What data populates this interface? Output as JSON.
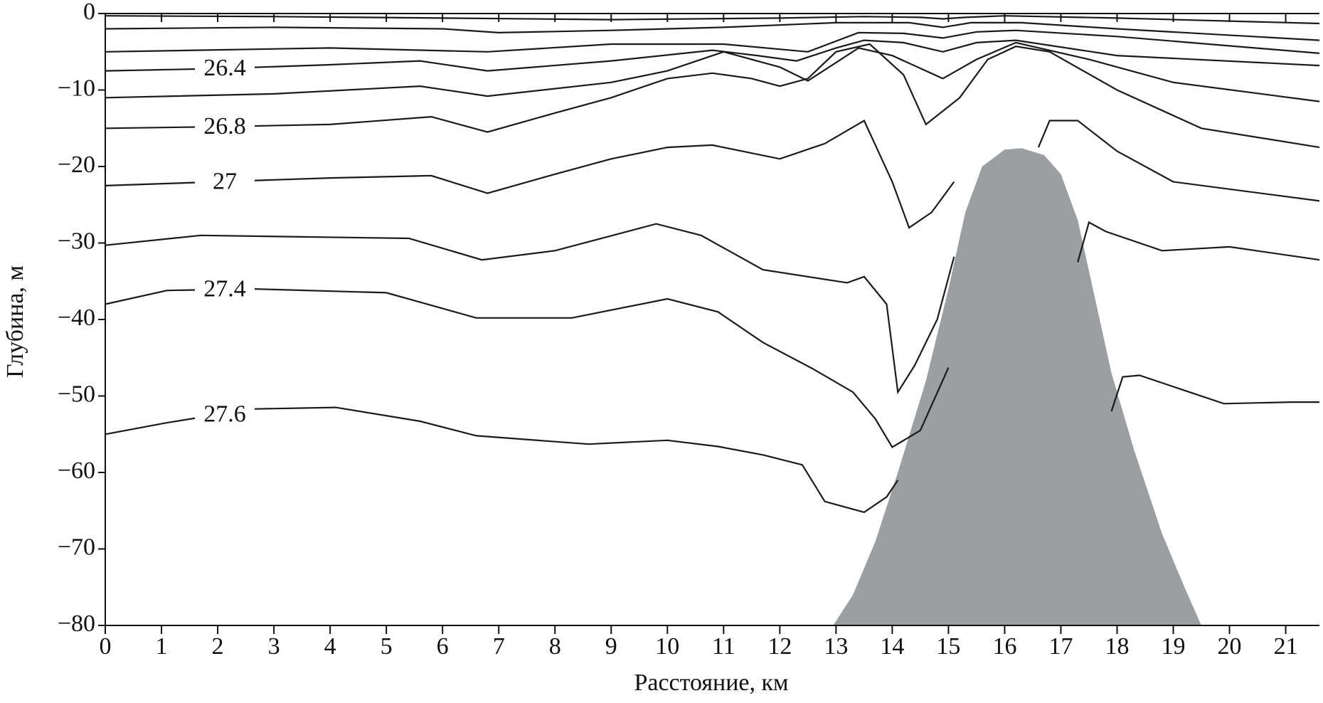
{
  "chart_data": {
    "type": "contour",
    "xlabel": "Расстояние, км",
    "ylabel": "Глубина, м",
    "xlim": [
      0,
      21.6
    ],
    "ylim": [
      -80,
      0
    ],
    "xticks": [
      0,
      1,
      2,
      3,
      4,
      5,
      6,
      7,
      8,
      9,
      10,
      11,
      12,
      13,
      14,
      15,
      16,
      17,
      18,
      19,
      20,
      21
    ],
    "yticks": [
      0,
      {
        "value": -10,
        "label": "−10"
      },
      {
        "value": -20,
        "label": "−20"
      },
      {
        "value": -30,
        "label": "−30"
      },
      {
        "value": -40,
        "label": "−40"
      },
      {
        "value": -50,
        "label": "−50"
      },
      {
        "value": -60,
        "label": "−60"
      },
      {
        "value": -70,
        "label": "−70"
      },
      {
        "value": -80,
        "label": "−80"
      }
    ],
    "line_color": "#1a1a1a",
    "terrain": {
      "color": "#9d9ea1",
      "x": [
        12.95,
        13.3,
        13.7,
        14.1,
        14.6,
        15.0,
        15.3,
        15.6,
        16.0,
        16.3,
        16.7,
        17.0,
        17.3,
        17.6,
        17.9,
        18.3,
        18.8,
        19.2,
        19.5
      ],
      "values": [
        -80,
        -76,
        -69,
        -60,
        -48,
        -36,
        -26,
        -20,
        -17.8,
        -17.6,
        -18.5,
        -21,
        -27,
        -37,
        -47,
        -57,
        -68,
        -75,
        -80
      ]
    },
    "series": [
      {
        "x": [
          0,
          3,
          6,
          9,
          12,
          13.5,
          14.5,
          14.9,
          15.3,
          16,
          18,
          21.6
        ],
        "values": [
          -0.3,
          -0.4,
          -0.6,
          -0.8,
          -0.6,
          -0.4,
          -0.5,
          -0.7,
          -0.5,
          -0.3,
          -0.6,
          -1.3
        ]
      },
      {
        "x": [
          0,
          3,
          6,
          7,
          9,
          11,
          13,
          14.3,
          14.9,
          15.4,
          16.3,
          18,
          21.6
        ],
        "values": [
          -2,
          -1.8,
          -2,
          -2.5,
          -2.2,
          -1.8,
          -1.2,
          -1.2,
          -1.8,
          -1.2,
          -1.2,
          -2,
          -3.5
        ]
      },
      {
        "x": [
          0,
          4,
          6.8,
          9,
          11,
          12.5,
          13.4,
          14.2,
          14.9,
          15.5,
          16.2,
          18,
          21.6
        ],
        "values": [
          -5,
          -4.5,
          -5,
          -4,
          -4,
          -5,
          -2.5,
          -2.6,
          -3.2,
          -2.4,
          -2.2,
          -3,
          -5.2
        ]
      },
      {
        "x": [
          0,
          2,
          4,
          5.6,
          6.8,
          9,
          10.8,
          11.6,
          12.3,
          13,
          13.5,
          14.2,
          14.9,
          15.5,
          16.2,
          18,
          21.6
        ],
        "values": [
          -7.5,
          -7.2,
          -6.7,
          -6.2,
          -7.5,
          -6.2,
          -4.8,
          -5.5,
          -6.2,
          -4.5,
          -3.5,
          -3.8,
          -5,
          -3.8,
          -3.5,
          -5.5,
          -6.8
        ],
        "label": 26.4
      },
      {
        "x": [
          0,
          3,
          5.6,
          6.8,
          9,
          10,
          11,
          12,
          12.5,
          13.4,
          14,
          14.9,
          15.5,
          16.2,
          17.5,
          19,
          21.6
        ],
        "values": [
          -11,
          -10.5,
          -9.5,
          -10.8,
          -9,
          -7.5,
          -5,
          -7,
          -8.8,
          -4.5,
          -5.5,
          -8.5,
          -6,
          -3.8,
          -6,
          -9,
          -11.5
        ]
      },
      {
        "x": [
          0,
          2,
          4,
          5.8,
          6.8,
          8,
          9,
          10,
          10.8,
          11.5,
          12,
          12.5,
          13,
          13.6,
          14.2,
          14.6,
          15.2,
          15.7,
          16.2,
          16.8,
          18,
          19.5,
          21.6
        ],
        "values": [
          -15,
          -14.8,
          -14.5,
          -13.5,
          -15.5,
          -13,
          -11,
          -8.5,
          -7.8,
          -8.5,
          -9.5,
          -8.5,
          -5,
          -4,
          -8,
          -14.5,
          -11,
          -6,
          -4.3,
          -5,
          -10,
          -15,
          -17.5
        ],
        "label": 26.8
      },
      {
        "x": [
          0,
          2,
          4,
          5.8,
          6.8,
          8,
          9,
          10,
          10.8,
          12,
          12.8,
          13.5,
          14,
          14.3,
          14.7,
          15.1,
          null,
          16.6,
          16.8,
          17.3,
          18,
          19,
          21.6
        ],
        "values": [
          -22.5,
          -22,
          -21.5,
          -21.2,
          -23.5,
          -21,
          -19,
          -17.5,
          -17.2,
          -19,
          -17,
          -14,
          -22,
          -28,
          -26,
          -22,
          null,
          -17.5,
          -14,
          -14,
          -18,
          -22,
          -24.5
        ],
        "label": 27
      },
      {
        "x": [
          0,
          1.7,
          5.4,
          6.7,
          8,
          9.8,
          10.6,
          11.7,
          13.2,
          13.5,
          13.9,
          14.1,
          14.4,
          14.8,
          15.1,
          null,
          17.3,
          17.5,
          17.8,
          18.8,
          20,
          21.6
        ],
        "values": [
          -30.3,
          -29,
          -29.4,
          -32.2,
          -31,
          -27.5,
          -29,
          -33.5,
          -35.2,
          -34.4,
          -38,
          -49.5,
          -46,
          -40,
          -31.8,
          null,
          -32.5,
          -27.3,
          -28.5,
          -31,
          -30.5,
          -32.2
        ]
      },
      {
        "x": [
          0,
          1.1,
          2.6,
          5,
          6.6,
          8.3,
          10,
          10.9,
          11.7,
          12.6,
          13.3,
          13.7,
          14,
          14.5,
          15.0,
          null,
          17.9,
          18.1,
          18.4,
          19.9,
          21.1,
          21.6
        ],
        "values": [
          -38,
          -36.2,
          -36,
          -36.5,
          -39.8,
          -39.8,
          -37.3,
          -39,
          -43,
          -46.5,
          -49.5,
          -53,
          -56.7,
          -54.5,
          -46.3,
          null,
          -52,
          -47.5,
          -47.3,
          -51,
          -50.8,
          -50.8
        ],
        "label": 27.4
      },
      {
        "x": [
          0,
          1.1,
          2.6,
          4.1,
          5.6,
          6.6,
          8.6,
          10,
          10.9,
          11.7,
          12.4,
          12.8,
          13.5,
          13.9,
          14.1
        ],
        "values": [
          -55,
          -53.5,
          -51.7,
          -51.5,
          -53.3,
          -55.2,
          -56.3,
          -55.8,
          -56.6,
          -57.7,
          -59,
          -63.8,
          -65.2,
          -63.2,
          -61
        ],
        "label": 27.6
      }
    ]
  }
}
